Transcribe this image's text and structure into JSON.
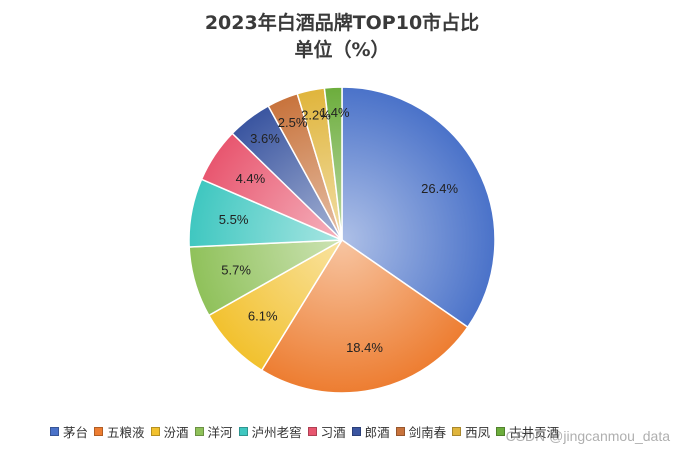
{
  "chart_data": {
    "type": "pie",
    "title": "2023年白酒品牌TOP10市占比",
    "subtitle": "单位（%）",
    "legend_position": "bottom",
    "categories": [
      "茅台",
      "五粮液",
      "汾酒",
      "洋河",
      "泸州老窖",
      "习酒",
      "郎酒",
      "剑南春",
      "西凤",
      "古井贡酒"
    ],
    "values": [
      26.4,
      18.4,
      6.1,
      5.7,
      5.5,
      4.4,
      3.6,
      2.5,
      2.2,
      1.4
    ],
    "labels": [
      "26.4%",
      "18.4%",
      "6.1%",
      "5.7%",
      "5.5%",
      "4.4%",
      "3.6%",
      "2.5%",
      "2.2%",
      "1.4%"
    ],
    "colors": [
      "#4a72c9",
      "#ed7d31",
      "#f2c12e",
      "#8fc15a",
      "#3fc7c0",
      "#e8566f",
      "#3a55a0",
      "#c8733c",
      "#e0b53c",
      "#6cad3c"
    ]
  },
  "watermark": "CSDN @jingcanmou_data"
}
